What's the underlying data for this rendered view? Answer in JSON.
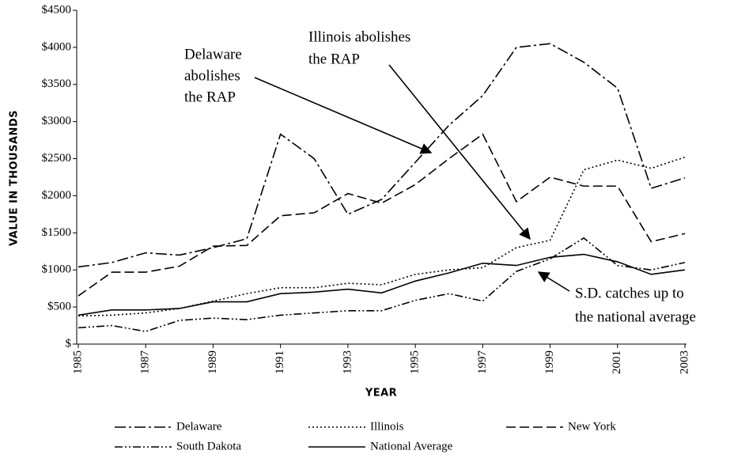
{
  "chart_data": {
    "type": "line",
    "x_label": "YEAR",
    "y_label": "VALUE IN THOUSANDS",
    "x": [
      1985,
      1986,
      1987,
      1988,
      1989,
      1990,
      1991,
      1992,
      1993,
      1994,
      1995,
      1996,
      1997,
      1998,
      1999,
      2000,
      2001,
      2002,
      2003
    ],
    "xlim": [
      1985,
      2003
    ],
    "xticks": [
      1985,
      1987,
      1989,
      1991,
      1993,
      1995,
      1997,
      1999,
      2001,
      2003
    ],
    "ylim": [
      0,
      4500
    ],
    "yticks": [
      {
        "value": 0,
        "label": "$"
      },
      {
        "value": 500,
        "label": "$500"
      },
      {
        "value": 1000,
        "label": "$1000"
      },
      {
        "value": 1500,
        "label": "$1500"
      },
      {
        "value": 2000,
        "label": "$2000"
      },
      {
        "value": 2500,
        "label": "$2500"
      },
      {
        "value": 3000,
        "label": "$3000"
      },
      {
        "value": 3500,
        "label": "$3500"
      },
      {
        "value": 4000,
        "label": "$4000"
      },
      {
        "value": 4500,
        "label": "$4500"
      }
    ],
    "series": [
      {
        "name": "Delaware",
        "color": "#000000",
        "dash": "14 4 3 4",
        "values": [
          1040,
          1100,
          1230,
          1200,
          1300,
          1420,
          2830,
          2500,
          1750,
          1950,
          2450,
          2950,
          3350,
          4000,
          4050,
          3800,
          3450,
          2100,
          2240
        ]
      },
      {
        "name": "Illinois",
        "color": "#000000",
        "dash": "2 3",
        "values": [
          380,
          390,
          420,
          480,
          580,
          680,
          760,
          760,
          820,
          800,
          940,
          1000,
          1030,
          1300,
          1400,
          2350,
          2480,
          2370,
          2520
        ]
      },
      {
        "name": "New York",
        "color": "#000000",
        "dash": "12 5",
        "values": [
          650,
          970,
          970,
          1050,
          1320,
          1330,
          1730,
          1770,
          2030,
          1900,
          2150,
          2500,
          2830,
          1920,
          2250,
          2130,
          2130,
          1380,
          1490
        ]
      },
      {
        "name": "South Dakota",
        "color": "#000000",
        "dash": "10 3 2 3 2 3",
        "values": [
          220,
          250,
          170,
          320,
          350,
          330,
          390,
          420,
          450,
          450,
          590,
          680,
          580,
          980,
          1150,
          1430,
          1060,
          1000,
          1100
        ]
      },
      {
        "name": "National Average",
        "color": "#000000",
        "dash": "none",
        "values": [
          390,
          460,
          460,
          480,
          570,
          570,
          680,
          700,
          740,
          690,
          850,
          960,
          1090,
          1060,
          1170,
          1210,
          1110,
          940,
          1000
        ]
      }
    ],
    "annotations": [
      {
        "lines": [
          "Delaware",
          "abolishes",
          "the RAP"
        ]
      },
      {
        "lines": [
          "Illinois abolishes",
          "the RAP"
        ]
      },
      {
        "lines": [
          "S.D. catches up to",
          "the national average"
        ]
      }
    ]
  }
}
